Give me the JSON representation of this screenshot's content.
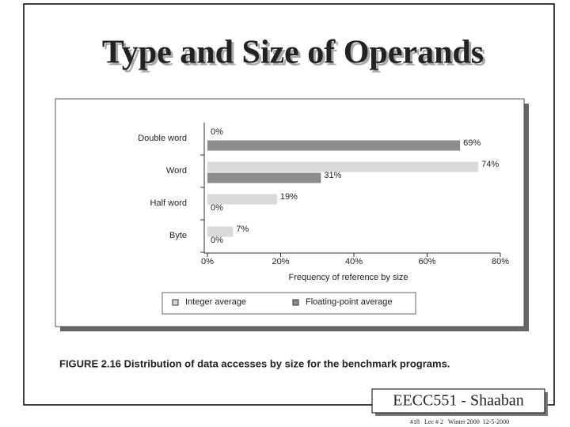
{
  "slide": {
    "title": "Type and Size of Operands",
    "caption": "FIGURE 2.16  Distribution of data accesses by size for the benchmark programs.",
    "footer_box": "EECC551 - Shaaban",
    "footer_note": "#18   Lec # 2   Winter 2000  12-5-2000"
  },
  "chart_data": {
    "type": "hbar",
    "categories": [
      "Double word",
      "Word",
      "Half word",
      "Byte"
    ],
    "series": [
      {
        "name": "Integer average",
        "color": "#d9d9d9",
        "values": [
          0,
          74,
          19,
          7
        ],
        "value_labels": [
          "0%",
          "74%",
          "19%",
          "7%"
        ]
      },
      {
        "name": "Floating-point average",
        "color": "#8c8c8c",
        "values": [
          69,
          31,
          0,
          0
        ],
        "value_labels": [
          "69%",
          "31%",
          "0%",
          "0%"
        ]
      }
    ],
    "xlabel": "Frequency of reference by size",
    "xlim": [
      0,
      80
    ],
    "xticks": [
      {
        "value": 0,
        "label": "0%"
      },
      {
        "value": 20,
        "label": "20%"
      },
      {
        "value": 40,
        "label": "40%"
      },
      {
        "value": 60,
        "label": "60%"
      },
      {
        "value": 80,
        "label": "80%"
      }
    ]
  }
}
